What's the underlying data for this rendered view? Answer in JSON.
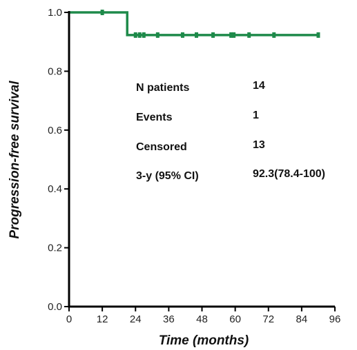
{
  "chart_data": {
    "type": "line",
    "subtype": "kaplan-meier",
    "xlabel": "Time (months)",
    "ylabel": "Progression-free survival",
    "xlim": [
      0,
      96
    ],
    "ylim": [
      0,
      1.0
    ],
    "x_ticks": [
      0,
      12,
      24,
      36,
      48,
      60,
      72,
      84,
      96
    ],
    "x_tick_labels": [
      "0",
      "12",
      "24",
      "36",
      "48",
      "60",
      "72",
      "84",
      "96"
    ],
    "y_ticks": [
      0,
      0.2,
      0.4,
      0.6,
      0.8,
      1.0
    ],
    "y_tick_labels": [
      "0.0",
      "0.2",
      "0.4",
      "0.6",
      "0.8",
      "1.0"
    ],
    "grid": false,
    "series": [
      {
        "color": "#1e8a4a",
        "steps": [
          {
            "x": 0,
            "y": 1.0
          },
          {
            "x": 21,
            "y": 1.0
          },
          {
            "x": 21,
            "y": 0.923
          },
          {
            "x": 90,
            "y": 0.923
          }
        ],
        "censored": [
          {
            "x": 12,
            "y": 1.0
          },
          {
            "x": 24,
            "y": 0.923
          },
          {
            "x": 25.5,
            "y": 0.923
          },
          {
            "x": 27,
            "y": 0.923
          },
          {
            "x": 32,
            "y": 0.923
          },
          {
            "x": 41,
            "y": 0.923
          },
          {
            "x": 46,
            "y": 0.923
          },
          {
            "x": 52,
            "y": 0.923
          },
          {
            "x": 58.5,
            "y": 0.923
          },
          {
            "x": 59.5,
            "y": 0.923
          },
          {
            "x": 65,
            "y": 0.923
          },
          {
            "x": 74,
            "y": 0.923
          },
          {
            "x": 90,
            "y": 0.923
          }
        ]
      }
    ],
    "annotations": [
      {
        "label": "N patients",
        "value": "14"
      },
      {
        "label": "Events",
        "value": "1"
      },
      {
        "label": "Censored",
        "value": "13"
      },
      {
        "label": "3-y (95% CI)",
        "value": "92.3(78.4-100)"
      }
    ]
  }
}
